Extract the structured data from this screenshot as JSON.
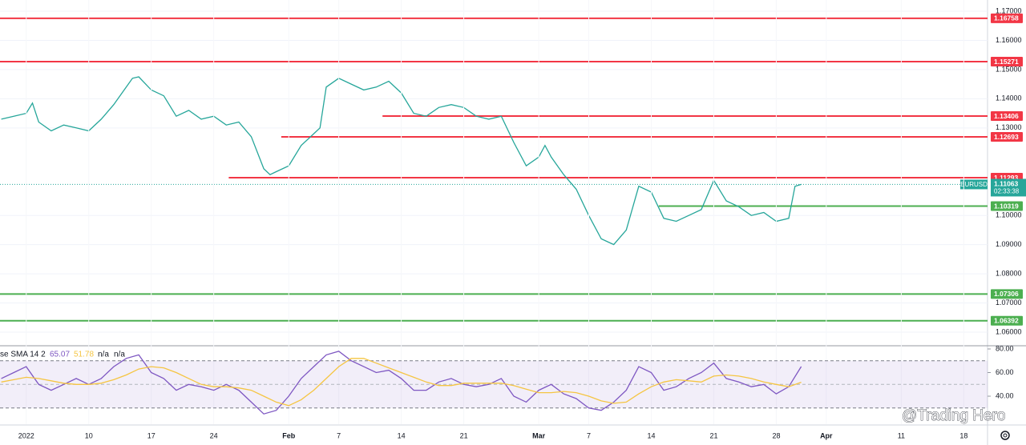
{
  "chart_data": [
    {
      "type": "line",
      "x": [
        -2,
        -1,
        0,
        0.5,
        1,
        2,
        3,
        4,
        5,
        6,
        7,
        8,
        8.5,
        9,
        10,
        11,
        12,
        13,
        14,
        15,
        16,
        17,
        18,
        19,
        19.5,
        20,
        21,
        22,
        23,
        23.5,
        24,
        25,
        26,
        27,
        28,
        29,
        30,
        31,
        32,
        33,
        34,
        35,
        36,
        37,
        38,
        39,
        40,
        41,
        41.5,
        42,
        43,
        44,
        45,
        46,
        47,
        48,
        49,
        50,
        51,
        52,
        53,
        54,
        55,
        56,
        57,
        58,
        59,
        60,
        61,
        61.5,
        62
      ],
      "series": [
        {
          "name": "EURUSD",
          "color": "#26a69a",
          "values": [
            1.133,
            1.134,
            1.135,
            1.1385,
            1.132,
            1.129,
            1.131,
            1.13,
            1.129,
            1.133,
            1.138,
            1.144,
            1.147,
            1.1475,
            1.143,
            1.141,
            1.134,
            1.136,
            1.133,
            1.134,
            1.131,
            1.132,
            1.127,
            1.116,
            1.114,
            1.115,
            1.117,
            1.124,
            1.128,
            1.13,
            1.144,
            1.147,
            1.145,
            1.143,
            1.144,
            1.146,
            1.142,
            1.135,
            1.134,
            1.137,
            1.138,
            1.137,
            1.134,
            1.133,
            1.134,
            1.125,
            1.117,
            1.12,
            1.124,
            1.12,
            1.114,
            1.109,
            1.1,
            1.092,
            1.09,
            1.095,
            1.11,
            1.108,
            1.099,
            1.098,
            1.1,
            1.102,
            1.112,
            1.105,
            1.103,
            1.1,
            1.101,
            1.098,
            1.099,
            1.11,
            1.11063
          ]
        }
      ],
      "xlim": [
        -2.1,
        76.9
      ],
      "ylim": [
        1.05534,
        1.17384
      ],
      "yticks": [
        {
          "value": 1.17,
          "label": "1.17000"
        },
        {
          "value": 1.16,
          "label": "1.16000"
        },
        {
          "value": 1.15,
          "label": "1.15000"
        },
        {
          "value": 1.14,
          "label": "1.14000"
        },
        {
          "value": 1.13,
          "label": "1.13000"
        },
        {
          "value": 1.1,
          "label": "1.10000"
        },
        {
          "value": 1.09,
          "label": "1.09000"
        },
        {
          "value": 1.08,
          "label": "1.08000"
        },
        {
          "value": 1.07,
          "label": "1.07000"
        },
        {
          "value": 1.06,
          "label": "1.06000"
        }
      ],
      "xticks": [
        {
          "value": 0,
          "label": "2022"
        },
        {
          "value": 5,
          "label": "10"
        },
        {
          "value": 10,
          "label": "17"
        },
        {
          "value": 15,
          "label": "24"
        },
        {
          "value": 21,
          "label": "Feb"
        },
        {
          "value": 25,
          "label": "7"
        },
        {
          "value": 30,
          "label": "14"
        },
        {
          "value": 35,
          "label": "21"
        },
        {
          "value": 41,
          "label": "Mar"
        },
        {
          "value": 45,
          "label": "7"
        },
        {
          "value": 50,
          "label": "14"
        },
        {
          "value": 55,
          "label": "21"
        },
        {
          "value": 60,
          "label": "28"
        },
        {
          "value": 64,
          "label": "Apr"
        },
        {
          "value": 70,
          "label": "11"
        },
        {
          "value": 75,
          "label": "18"
        }
      ],
      "grid": true,
      "levels": [
        {
          "value": 1.16758,
          "color": "#f23645"
        },
        {
          "value": 1.15271,
          "color": "#f23645"
        },
        {
          "value": 1.13406,
          "color": "#f23645",
          "from": 28.5
        },
        {
          "value": 1.12693,
          "color": "#f23645",
          "from": 20.4
        },
        {
          "value": 1.11293,
          "color": "#f23645",
          "from": 16.2
        },
        {
          "value": 1.10319,
          "color": "#4caf50",
          "from": 50.6
        },
        {
          "value": 1.07306,
          "color": "#4caf50"
        },
        {
          "value": 1.06392,
          "color": "#4caf50"
        }
      ],
      "current": {
        "symbol": "EURUSD",
        "price": 1.11063,
        "countdown": "02:33:38",
        "color": "#26a69a"
      }
    },
    {
      "type": "line",
      "title": "se SMA 14 2",
      "x": [
        -2,
        -1,
        0,
        1,
        2,
        3,
        4,
        5,
        6,
        7,
        8,
        9,
        10,
        11,
        12,
        13,
        14,
        15,
        16,
        17,
        18,
        19,
        20,
        21,
        22,
        23,
        24,
        25,
        26,
        27,
        28,
        29,
        30,
        31,
        32,
        33,
        34,
        35,
        36,
        37,
        38,
        39,
        40,
        41,
        42,
        43,
        44,
        45,
        46,
        47,
        48,
        49,
        50,
        51,
        52,
        53,
        54,
        55,
        56,
        57,
        58,
        59,
        60,
        61,
        62
      ],
      "series": [
        {
          "color": "#7e57c2",
          "values": [
            55,
            60,
            65,
            50,
            45,
            50,
            55,
            50,
            55,
            65,
            72,
            75,
            60,
            55,
            45,
            50,
            48,
            45,
            50,
            45,
            35,
            25,
            28,
            40,
            55,
            65,
            75,
            78,
            70,
            65,
            60,
            62,
            55,
            45,
            45,
            52,
            55,
            50,
            48,
            50,
            55,
            40,
            35,
            45,
            50,
            42,
            38,
            30,
            28,
            35,
            45,
            65,
            60,
            45,
            48,
            55,
            60,
            68,
            55,
            52,
            48,
            50,
            42,
            48,
            65.07
          ]
        },
        {
          "color": "#f5c542",
          "values": [
            52,
            54,
            56,
            55,
            53,
            51,
            50,
            50,
            51,
            54,
            58,
            63,
            65,
            64,
            60,
            55,
            50,
            48,
            48,
            47,
            45,
            40,
            35,
            32,
            37,
            45,
            55,
            65,
            72,
            72,
            68,
            64,
            60,
            56,
            52,
            49,
            49,
            51,
            51,
            51,
            51,
            49,
            46,
            43,
            43,
            44,
            43,
            40,
            36,
            34,
            35,
            42,
            48,
            52,
            54,
            53,
            52,
            57,
            58,
            57,
            55,
            52,
            50,
            48,
            51.78
          ]
        }
      ],
      "extra_labels": [
        "n/a",
        "n/a"
      ],
      "ylim": [
        16.3,
        82.7
      ],
      "yticks": [
        {
          "value": 80,
          "label": "80.00"
        },
        {
          "value": 60,
          "label": "60.00"
        },
        {
          "value": 40,
          "label": "40.00"
        }
      ],
      "band": [
        30,
        70
      ],
      "midline": 50
    },
    {
      "type": "watermark",
      "text": "@Trading Hero"
    }
  ]
}
